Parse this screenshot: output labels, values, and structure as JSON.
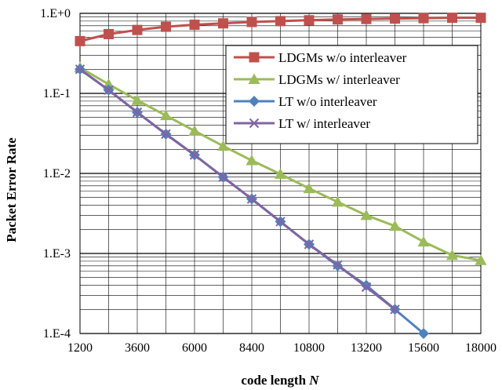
{
  "chart_data": {
    "type": "line",
    "title": "",
    "xlabel_text": "code length ",
    "xlabel_var": "N",
    "ylabel": "Packet Error Rate",
    "xlim": [
      1200,
      18000
    ],
    "ylim": [
      0.0001,
      1
    ],
    "yscale": "log",
    "x_ticks": [
      1200,
      3600,
      6000,
      8400,
      10800,
      13200,
      15600,
      18000
    ],
    "y_ticks": [
      "1.E-4",
      "1.E-3",
      "1.E-2",
      "1.E-1",
      "1.E+0"
    ],
    "grid": true,
    "legend_position": "top-right",
    "series": [
      {
        "name": "LDGMs w/o interleaver",
        "color": "#c0504d",
        "marker": "square",
        "x": [
          1200,
          2400,
          3600,
          4800,
          6000,
          7200,
          8400,
          9600,
          10800,
          12000,
          13200,
          14400,
          15600,
          16800,
          18000
        ],
        "y": [
          0.45,
          0.55,
          0.62,
          0.68,
          0.72,
          0.75,
          0.78,
          0.8,
          0.82,
          0.84,
          0.85,
          0.86,
          0.87,
          0.88,
          0.88
        ]
      },
      {
        "name": "LDGMs w/ interleaver",
        "color": "#9bbb59",
        "marker": "triangle",
        "x": [
          1200,
          2400,
          3600,
          4800,
          6000,
          7200,
          8400,
          9600,
          10800,
          12000,
          13200,
          14400,
          15600,
          16800,
          18000
        ],
        "y": [
          0.21,
          0.13,
          0.082,
          0.053,
          0.034,
          0.022,
          0.0145,
          0.0098,
          0.0065,
          0.0044,
          0.003,
          0.0022,
          0.0014,
          0.00095,
          0.00082
        ]
      },
      {
        "name": "LT w/o interleaver",
        "color": "#4f81bd",
        "marker": "diamond",
        "x": [
          1200,
          2400,
          3600,
          4800,
          6000,
          7200,
          8400,
          9600,
          10800,
          12000,
          13200,
          14400,
          15600
        ],
        "y": [
          0.2,
          0.11,
          0.058,
          0.031,
          0.017,
          0.009,
          0.0048,
          0.0025,
          0.0013,
          0.0007,
          0.0004,
          0.0002,
          0.0001
        ]
      },
      {
        "name": "LT w/ interleaver",
        "color": "#8064a2",
        "marker": "x",
        "x": [
          1200,
          2400,
          3600,
          4800,
          6000,
          7200,
          8400,
          9600,
          10800,
          12000,
          13200,
          14400
        ],
        "y": [
          0.2,
          0.11,
          0.058,
          0.031,
          0.017,
          0.009,
          0.0048,
          0.0025,
          0.0013,
          0.00072,
          0.00038,
          0.0002
        ]
      }
    ]
  }
}
